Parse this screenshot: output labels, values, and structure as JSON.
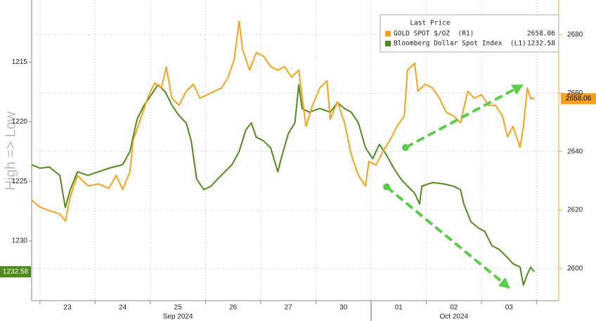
{
  "chart_data": {
    "type": "line",
    "y_title": "High => Low",
    "legend_title": "Last Price",
    "xlim": [
      -0.15,
      9.4
    ],
    "xticks": [
      {
        "value": 0.5,
        "label": "23"
      },
      {
        "value": 1.5,
        "label": "24"
      },
      {
        "value": 2.5,
        "label": "25"
      },
      {
        "value": 3.5,
        "label": "26"
      },
      {
        "value": 4.5,
        "label": "27"
      },
      {
        "value": 5.5,
        "label": "30"
      },
      {
        "value": 6.5,
        "label": "01"
      },
      {
        "value": 7.5,
        "label": "02"
      },
      {
        "value": 8.5,
        "label": "03"
      }
    ],
    "xgrid": [
      0,
      1,
      2,
      3,
      4,
      5,
      6,
      7,
      8,
      9
    ],
    "month_labels": [
      {
        "value": 2.5,
        "label": "Sep 2024"
      },
      {
        "value": 7.5,
        "label": "Oct 2024"
      }
    ],
    "ylim": [
      1235,
      1209.8
    ],
    "yticks": [
      1215,
      1220,
      1225,
      1230
    ],
    "y2lim": [
      2589,
      2691.8
    ],
    "y2ticks": [
      2600,
      2620,
      2640,
      2660,
      2680
    ],
    "grid": true,
    "series": [
      {
        "name": "GOLD SPOT $/OZ  (R1)",
        "color": "#f5a11e",
        "axis": "y2",
        "last": 2658.06,
        "x": [
          -0.15,
          0,
          0.17,
          0.36,
          0.46,
          0.55,
          0.68,
          0.87,
          1.06,
          1.25,
          1.38,
          1.5,
          1.63,
          1.69,
          1.82,
          1.95,
          2.08,
          2.2,
          2.29,
          2.39,
          2.52,
          2.65,
          2.78,
          2.9,
          3.03,
          3.16,
          3.29,
          3.41,
          3.52,
          3.61,
          3.67,
          3.8,
          3.92,
          4.05,
          4.18,
          4.31,
          4.43,
          4.56,
          4.69,
          4.82,
          4.94,
          5.07,
          5.2,
          5.26,
          5.39,
          5.52,
          5.64,
          5.77,
          5.9,
          5.96,
          6.09,
          6.22,
          6.34,
          6.47,
          6.6,
          6.66,
          6.79,
          6.85,
          6.98,
          7.11,
          7.24,
          7.36,
          7.49,
          7.62,
          7.75,
          7.87,
          8,
          8.13,
          8.25,
          8.38,
          8.47,
          8.57,
          8.7,
          8.76,
          8.83,
          8.89,
          8.96
        ],
        "values": [
          2623.4,
          2621,
          2619.8,
          2618.6,
          2616.2,
          2624.6,
          2631.8,
          2628.2,
          2628.9,
          2627.4,
          2631.8,
          2627,
          2633,
          2643.8,
          2651,
          2658.2,
          2663.4,
          2661.7,
          2668.9,
          2658.2,
          2655.8,
          2660.6,
          2663,
          2658.2,
          2659.4,
          2660.6,
          2661.7,
          2665.4,
          2671.4,
          2684.6,
          2675,
          2667.8,
          2673.8,
          2672.6,
          2669,
          2667.8,
          2669,
          2665.4,
          2667.8,
          2648.6,
          2655.8,
          2661.7,
          2664.2,
          2651,
          2657,
          2649.8,
          2639,
          2631.8,
          2628.2,
          2636.6,
          2635.4,
          2640.2,
          2643.8,
          2648.6,
          2652.2,
          2667.8,
          2670.2,
          2660.6,
          2663,
          2661.7,
          2658.2,
          2653.4,
          2652.2,
          2649.8,
          2660.6,
          2658.2,
          2659.4,
          2655.8,
          2655.8,
          2652.2,
          2645,
          2648.6,
          2641.4,
          2648.6,
          2661.7,
          2658.2,
          2658.06
        ]
      },
      {
        "name": "Bloomberg Dollar Spot Index  (L1)",
        "color": "#4e8a1b",
        "axis": "y",
        "last": 1232.58,
        "x": [
          -0.15,
          0,
          0.17,
          0.36,
          0.46,
          0.55,
          0.68,
          0.87,
          1.06,
          1.25,
          1.5,
          1.63,
          1.76,
          1.89,
          2.01,
          2.14,
          2.27,
          2.39,
          2.52,
          2.65,
          2.74,
          2.84,
          2.97,
          3.1,
          3.22,
          3.35,
          3.48,
          3.61,
          3.73,
          3.83,
          3.92,
          4.05,
          4.18,
          4.31,
          4.37,
          4.5,
          4.62,
          4.69,
          4.75,
          4.88,
          5.07,
          5.26,
          5.39,
          5.52,
          5.64,
          5.77,
          5.9,
          6.03,
          6.15,
          6.28,
          6.41,
          6.54,
          6.66,
          6.79,
          6.88,
          6.92,
          7.11,
          7.3,
          7.49,
          7.62,
          7.68,
          7.81,
          7.94,
          8.06,
          8.19,
          8.32,
          8.45,
          8.57,
          8.7,
          8.76,
          8.83,
          8.89,
          8.96
        ],
        "values": [
          1223.6,
          1223.9,
          1223.8,
          1224.5,
          1227.2,
          1225.7,
          1224.2,
          1224.5,
          1224.2,
          1223.9,
          1223.6,
          1222.5,
          1219.8,
          1218.6,
          1217.8,
          1216.9,
          1217.5,
          1218.6,
          1219.5,
          1220.1,
          1221.6,
          1224.8,
          1225.7,
          1225.4,
          1224.8,
          1224.2,
          1223.6,
          1222.5,
          1220.7,
          1220.1,
          1221.3,
          1221.6,
          1222.2,
          1224.2,
          1223.1,
          1221,
          1220.1,
          1216.9,
          1218.9,
          1219.2,
          1218.9,
          1219.2,
          1218.4,
          1218.9,
          1219.2,
          1220.1,
          1222.2,
          1223.1,
          1221.9,
          1222.8,
          1223.9,
          1224.8,
          1225.4,
          1226,
          1226.9,
          1225.4,
          1225.1,
          1225.2,
          1225.4,
          1225.7,
          1226.9,
          1228.4,
          1228.9,
          1229.2,
          1230.4,
          1230.7,
          1231.3,
          1231.9,
          1232.2,
          1233.7,
          1232.8,
          1232.2,
          1232.58
        ]
      }
    ]
  }
}
